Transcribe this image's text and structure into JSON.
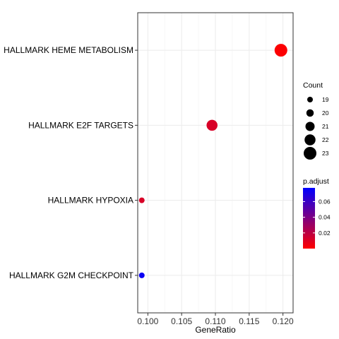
{
  "chart_data": {
    "type": "scatter",
    "xlabel": "GeneRatio",
    "xlim": [
      0.0985,
      0.1215
    ],
    "x_ticks": [
      {
        "value": 0.1,
        "label": "0.100"
      },
      {
        "value": 0.105,
        "label": "0.105"
      },
      {
        "value": 0.11,
        "label": "0.110"
      },
      {
        "value": 0.115,
        "label": "0.115"
      },
      {
        "value": 0.12,
        "label": "0.120"
      }
    ],
    "categories": [
      "HALLMARK HEME METABOLISM",
      "HALLMARK E2F TARGETS",
      "HALLMARK HYPOXIA",
      "HALLMARK G2M CHECKPOINT"
    ],
    "points": [
      {
        "term": "HALLMARK HEME METABOLISM",
        "gene_ratio": 0.1197,
        "count": 23,
        "p_adjust": 0.001
      },
      {
        "term": "HALLMARK E2F TARGETS",
        "gene_ratio": 0.1095,
        "count": 22,
        "p_adjust": 0.012
      },
      {
        "term": "HALLMARK HYPOXIA",
        "gene_ratio": 0.0991,
        "count": 19,
        "p_adjust": 0.012
      },
      {
        "term": "HALLMARK G2M CHECKPOINT",
        "gene_ratio": 0.0991,
        "count": 19,
        "p_adjust": 0.074
      }
    ],
    "grid": true,
    "size_legend": {
      "title": "Count",
      "entries": [
        {
          "value": 19,
          "label": "19"
        },
        {
          "value": 20,
          "label": "20"
        },
        {
          "value": 21,
          "label": "21"
        },
        {
          "value": 22,
          "label": "22"
        },
        {
          "value": 23,
          "label": "23"
        }
      ]
    },
    "color_legend": {
      "title": "p.adjust",
      "range": [
        0.0,
        0.0775
      ],
      "low_color": "#ff0000",
      "high_color": "#0000ff",
      "ticks": [
        {
          "value": 0.02,
          "label": "0.02"
        },
        {
          "value": 0.04,
          "label": "0.04"
        },
        {
          "value": 0.06,
          "label": "0.06"
        }
      ]
    },
    "legend_position": "right"
  }
}
